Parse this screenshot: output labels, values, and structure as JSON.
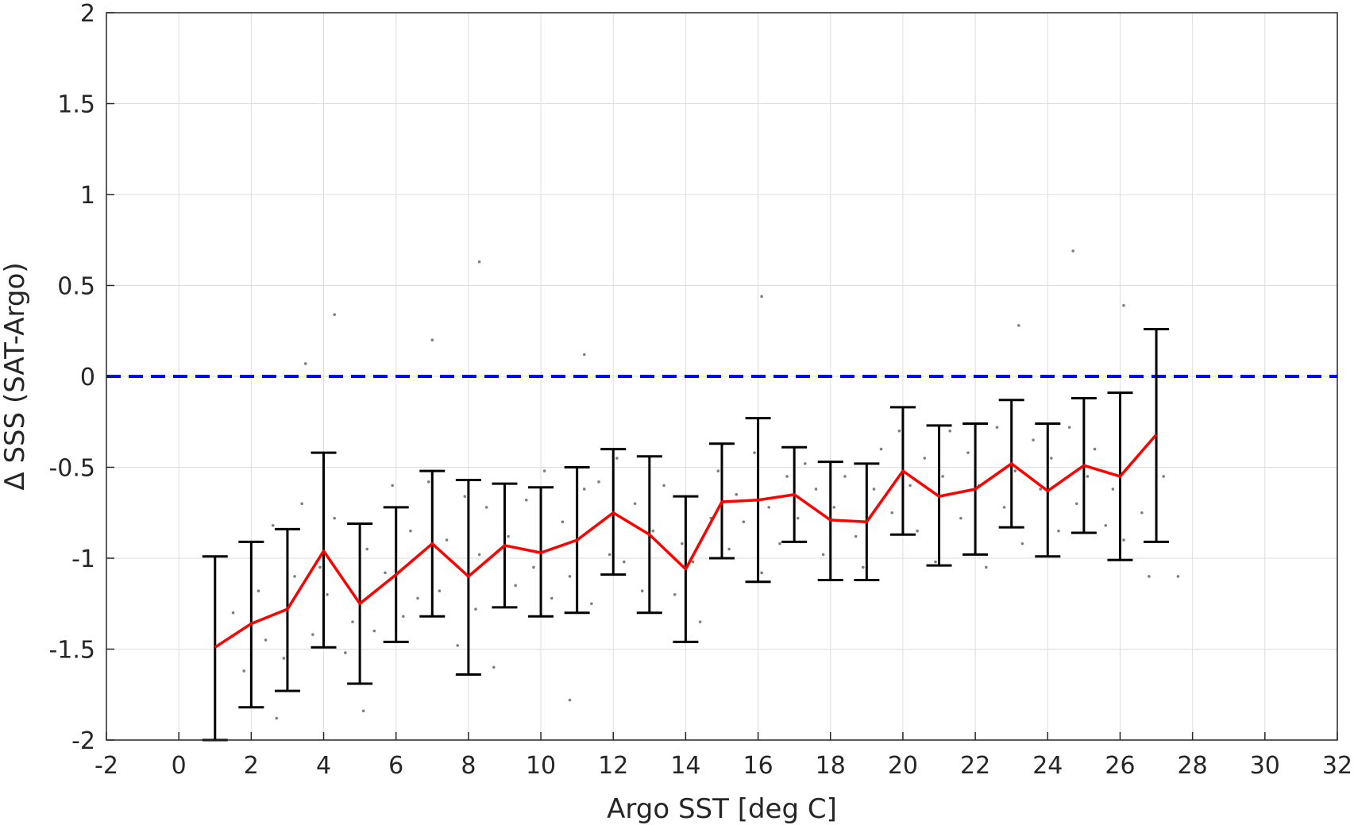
{
  "chart_data": {
    "type": "line",
    "xlabel": "Argo SST [deg C]",
    "ylabel": "Δ SSS (SAT-Argo)",
    "xlim": [
      -2,
      32
    ],
    "ylim": [
      -2,
      2
    ],
    "xticks": [
      -2,
      0,
      2,
      4,
      6,
      8,
      10,
      12,
      14,
      16,
      18,
      20,
      22,
      24,
      26,
      28,
      30,
      32
    ],
    "yticks": [
      -2,
      -1.5,
      -1,
      -0.5,
      0,
      0.5,
      1,
      1.5,
      2
    ],
    "xtick_labels": [
      "-2",
      "0",
      "2",
      "4",
      "6",
      "8",
      "10",
      "12",
      "14",
      "16",
      "18",
      "20",
      "22",
      "24",
      "26",
      "28",
      "30",
      "32"
    ],
    "ytick_labels": [
      "-2",
      "-1.5",
      "-1",
      "-0.5",
      "0",
      "0.5",
      "1",
      "1.5",
      "2"
    ],
    "grid": true,
    "reference_line": {
      "y": 0,
      "color": "#0000ff",
      "style": "dashed"
    },
    "series": [
      {
        "kind": "mean_with_errorbars",
        "line_color": "#ff0000",
        "errorbar_color": "#000000",
        "x": [
          1,
          2,
          3,
          4,
          5,
          6,
          7,
          8,
          9,
          10,
          11,
          12,
          13,
          14,
          15,
          16,
          17,
          18,
          19,
          20,
          21,
          22,
          23,
          24,
          25,
          26,
          27
        ],
        "y": [
          -1.49,
          -1.36,
          -1.28,
          -0.96,
          -1.25,
          -1.09,
          -0.92,
          -1.1,
          -0.93,
          -0.97,
          -0.9,
          -0.75,
          -0.87,
          -1.06,
          -0.69,
          -0.68,
          -0.65,
          -0.79,
          -0.8,
          -0.52,
          -0.66,
          -0.62,
          -0.48,
          -0.63,
          -0.49,
          -0.55,
          -0.32
        ],
        "err_low": [
          -2.0,
          -1.82,
          -1.73,
          -1.49,
          -1.69,
          -1.46,
          -1.32,
          -1.64,
          -1.27,
          -1.32,
          -1.3,
          -1.09,
          -1.3,
          -1.46,
          -1.0,
          -1.13,
          -0.91,
          -1.12,
          -1.12,
          -0.87,
          -1.04,
          -0.98,
          -0.83,
          -0.99,
          -0.86,
          -1.01,
          -0.91
        ],
        "err_high": [
          -0.99,
          -0.91,
          -0.84,
          -0.42,
          -0.81,
          -0.72,
          -0.52,
          -0.57,
          -0.59,
          -0.61,
          -0.5,
          -0.4,
          -0.44,
          -0.66,
          -0.37,
          -0.23,
          -0.39,
          -0.47,
          -0.48,
          -0.17,
          -0.27,
          -0.26,
          -0.13,
          -0.26,
          -0.12,
          -0.09,
          0.26
        ]
      },
      {
        "kind": "scatter",
        "color": "#7f7f7f",
        "x": [
          1.5,
          1.8,
          2.2,
          2.4,
          2.6,
          2.9,
          3.2,
          3.4,
          3.7,
          3.9,
          4.1,
          4.3,
          4.6,
          4.8,
          5.2,
          5.4,
          5.7,
          5.9,
          6.2,
          6.4,
          6.6,
          6.9,
          7.2,
          7.4,
          7.7,
          7.9,
          8.2,
          8.3,
          8.5,
          8.7,
          9.1,
          9.3,
          9.6,
          9.8,
          10.1,
          10.3,
          10.6,
          10.8,
          11.2,
          11.4,
          11.6,
          11.9,
          12.1,
          12.3,
          12.6,
          12.8,
          13.1,
          13.4,
          13.7,
          13.9,
          14.2,
          14.4,
          14.7,
          14.9,
          15.2,
          15.4,
          15.6,
          15.9,
          16.1,
          16.3,
          16.6,
          16.8,
          17.1,
          17.3,
          17.6,
          17.8,
          18.1,
          18.4,
          18.7,
          18.9,
          19.2,
          19.4,
          19.7,
          19.9,
          20.2,
          20.4,
          20.6,
          20.9,
          21.1,
          21.3,
          21.6,
          21.8,
          22.1,
          22.3,
          22.6,
          22.8,
          23.1,
          23.3,
          23.6,
          23.8,
          24.1,
          24.3,
          24.6,
          24.8,
          25.1,
          25.3,
          25.6,
          25.8,
          26.1,
          26.3,
          26.6,
          26.8,
          27.2,
          27.6,
          4.3,
          3.5,
          7.0,
          8.3,
          11.2,
          16.1,
          24.7,
          26.1,
          23.2,
          10.8,
          5.1,
          2.7
        ],
        "y": [
          -1.3,
          -1.62,
          -1.18,
          -1.45,
          -0.82,
          -1.55,
          -1.1,
          -0.7,
          -1.42,
          -1.05,
          -1.2,
          -0.78,
          -1.52,
          -1.35,
          -0.95,
          -1.4,
          -1.08,
          -0.6,
          -1.32,
          -0.85,
          -1.22,
          -0.58,
          -1.18,
          -0.9,
          -1.48,
          -0.66,
          -1.28,
          -0.98,
          -0.72,
          -1.6,
          -0.88,
          -1.15,
          -0.68,
          -1.05,
          -0.52,
          -1.22,
          -0.8,
          -1.1,
          -0.62,
          -1.25,
          -0.58,
          -0.98,
          -0.45,
          -1.02,
          -0.7,
          -1.18,
          -0.85,
          -0.6,
          -1.2,
          -0.92,
          -1.02,
          -1.35,
          -0.78,
          -0.52,
          -0.95,
          -0.65,
          -0.8,
          -0.42,
          -1.08,
          -0.72,
          -0.92,
          -0.55,
          -0.78,
          -0.48,
          -0.62,
          -0.98,
          -0.72,
          -0.55,
          -0.88,
          -1.05,
          -0.62,
          -0.4,
          -0.75,
          -0.3,
          -0.6,
          -0.85,
          -0.45,
          -1.02,
          -0.55,
          -0.3,
          -0.78,
          -0.42,
          -0.6,
          -1.05,
          -0.28,
          -0.72,
          -0.52,
          -0.92,
          -0.35,
          -0.62,
          -0.45,
          -0.85,
          -0.28,
          -0.7,
          -0.55,
          -0.4,
          -0.82,
          -0.62,
          -0.9,
          -0.48,
          -0.75,
          -1.1,
          -0.55,
          -1.1,
          0.34,
          0.07,
          0.2,
          0.63,
          0.12,
          0.44,
          0.69,
          0.39,
          0.28,
          -1.78,
          -1.84,
          -1.88
        ]
      }
    ]
  }
}
